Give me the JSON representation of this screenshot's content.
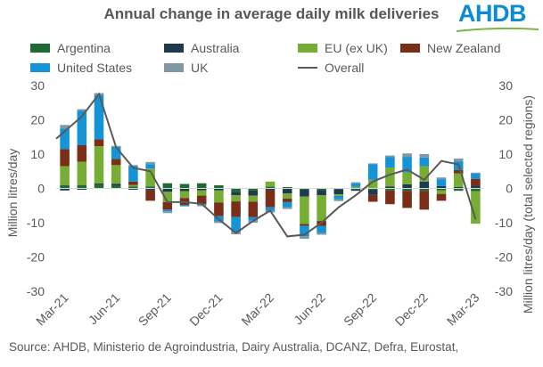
{
  "title": "Annual change in average daily milk deliveries",
  "logo_text": "AHDB",
  "source": "Source: AHDB, Ministerio de Agroindustria, Dairy Australia, DCANZ, Defra, Eurostat,",
  "chart_data": {
    "type": "bar",
    "stacked": true,
    "overlay_line": "Overall",
    "title": "Annual change in average daily milk deliveries",
    "ylabel_left": "Million litres/day",
    "ylabel_right": "Million litres/day (total selected regions)",
    "ylim": [
      -30,
      30
    ],
    "yticks": [
      -30,
      -20,
      -10,
      0,
      10,
      20,
      30
    ],
    "grid": false,
    "legend_position": "top",
    "categories": [
      "Mar-21",
      "Apr-21",
      "May-21",
      "Jun-21",
      "Jul-21",
      "Aug-21",
      "Sep-21",
      "Oct-21",
      "Nov-21",
      "Dec-21",
      "Jan-22",
      "Feb-22",
      "Mar-22",
      "Apr-22",
      "May-22",
      "Jun-22",
      "Jul-22",
      "Aug-22",
      "Sep-22",
      "Oct-22",
      "Nov-22",
      "Dec-22",
      "Jan-23",
      "Feb-23",
      "Mar-23"
    ],
    "x_tick_labels": [
      "Mar-21",
      "Jun-21",
      "Sep-21",
      "Dec-21",
      "Mar-22",
      "Jun-22",
      "Sep-22",
      "Dec-22",
      "Mar-23"
    ],
    "series": [
      {
        "name": "Argentina",
        "color": "#1e6b34",
        "values": [
          1.0,
          1.0,
          1.3,
          0.8,
          0.6,
          0.6,
          1.5,
          1.3,
          1.5,
          0.9,
          -1.0,
          -0.6,
          0.5,
          0.4,
          -0.4,
          -0.5,
          -0.2,
          -0.2,
          -0.4,
          -0.6,
          -0.7,
          -0.7,
          -0.6,
          -0.7,
          -0.8
        ]
      },
      {
        "name": "Australia",
        "color": "#1d3a4f",
        "values": [
          -0.6,
          -0.4,
          0.2,
          0.5,
          -0.4,
          -0.6,
          -1.0,
          -0.8,
          -0.6,
          -0.6,
          -1.0,
          -1.5,
          -0.5,
          -1.5,
          -2.0,
          -1.5,
          -1.5,
          -0.5,
          -1.5,
          0.6,
          1.2,
          2.0,
          0.7,
          0.4,
          0.8
        ]
      },
      {
        "name": "EU (ex UK)",
        "color": "#77ad35",
        "values": [
          5.5,
          6.8,
          10.8,
          5.5,
          0.4,
          5.2,
          -3.0,
          -2.0,
          -1.5,
          -3.5,
          -1.8,
          -1.8,
          1.5,
          -1.5,
          -8.0,
          -7.5,
          -0.5,
          0.5,
          2.5,
          5.5,
          3.5,
          4.5,
          -1.0,
          4.0,
          -9.5
        ]
      },
      {
        "name": "New Zealand",
        "color": "#7a2e17",
        "values": [
          5.0,
          4.8,
          2.0,
          1.8,
          1.0,
          -3.0,
          -2.2,
          -2.0,
          -2.5,
          -4.0,
          -4.5,
          -4.5,
          -5.0,
          -1.0,
          -0.5,
          -1.5,
          0,
          0,
          -2.0,
          -4.0,
          -5.0,
          -5.5,
          -2.0,
          1.0,
          2.0
        ]
      },
      {
        "name": "United States",
        "color": "#1493d6",
        "values": [
          6.0,
          10.0,
          13.0,
          3.5,
          4.5,
          1.3,
          -0.5,
          -0.3,
          -0.3,
          -1.5,
          -4.5,
          -1.0,
          -1.0,
          -1.5,
          -3.0,
          -2.0,
          -1.0,
          1.0,
          4.5,
          3.0,
          4.5,
          2.5,
          2.0,
          2.5,
          1.5
        ]
      },
      {
        "name": "UK",
        "color": "#7e98a6",
        "values": [
          1.0,
          0.5,
          0.5,
          0.3,
          0.3,
          0.6,
          -0.5,
          -0.2,
          -0.3,
          -0.5,
          -0.6,
          -0.6,
          -0.5,
          -0.5,
          -0.8,
          -0.5,
          -0.5,
          0.3,
          0.3,
          0.5,
          1.0,
          1.0,
          0.5,
          0.8,
          0.3
        ]
      }
    ],
    "overall": {
      "name": "Overall",
      "color": "#595959",
      "values": [
        14.5,
        21.0,
        27.5,
        12.0,
        6.0,
        5.0,
        -4.0,
        -4.0,
        -4.5,
        -9.0,
        -13.0,
        -9.5,
        -6.5,
        -14.0,
        -13.5,
        -10.0,
        -5.5,
        -2.0,
        2.0,
        4.0,
        5.5,
        2.5,
        8.0,
        7.0,
        -9.0
      ]
    }
  }
}
